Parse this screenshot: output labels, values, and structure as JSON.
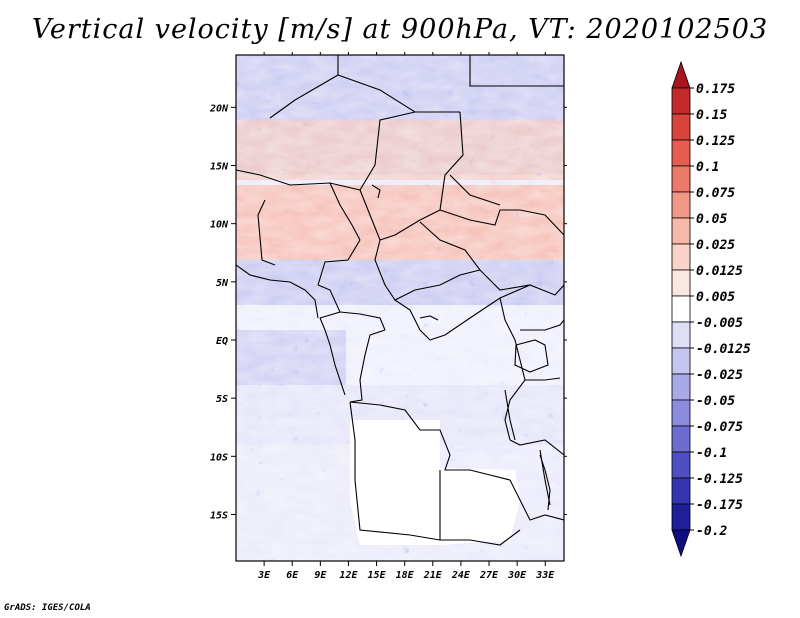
{
  "title": "Vertical velocity [m/s] at 900hPa, VT: 2020102503",
  "credit": "GrADS: IGES/COLA",
  "map": {
    "lon_range": [
      0,
      35
    ],
    "lat_range": [
      -19,
      24.5
    ],
    "lon_ticks": [
      {
        "value": 3,
        "label": "3E"
      },
      {
        "value": 6,
        "label": "6E"
      },
      {
        "value": 9,
        "label": "9E"
      },
      {
        "value": 12,
        "label": "12E"
      },
      {
        "value": 15,
        "label": "15E"
      },
      {
        "value": 18,
        "label": "18E"
      },
      {
        "value": 21,
        "label": "21E"
      },
      {
        "value": 24,
        "label": "24E"
      },
      {
        "value": 27,
        "label": "27E"
      },
      {
        "value": 30,
        "label": "30E"
      },
      {
        "value": 33,
        "label": "33E"
      }
    ],
    "lat_ticks": [
      {
        "value": 20,
        "label": "20N"
      },
      {
        "value": 15,
        "label": "15N"
      },
      {
        "value": 10,
        "label": "10N"
      },
      {
        "value": 5,
        "label": "5N"
      },
      {
        "value": 0,
        "label": "EQ"
      },
      {
        "value": -5,
        "label": "5S"
      },
      {
        "value": -10,
        "label": "10S"
      },
      {
        "value": -15,
        "label": "15S"
      }
    ]
  },
  "colorbar": {
    "labels": [
      "0.175",
      "0.15",
      "0.125",
      "0.1",
      "0.075",
      "0.05",
      "0.025",
      "0.0125",
      "0.005",
      "-0.005",
      "-0.0125",
      "-0.025",
      "-0.05",
      "-0.075",
      "-0.1",
      "-0.125",
      "-0.175",
      "-0.2"
    ],
    "colors": [
      "#a8161c",
      "#c42a2c",
      "#d8443c",
      "#e55d4f",
      "#ec7a68",
      "#f19987",
      "#f6b8a9",
      "#f9d3c8",
      "#fbe7e1",
      "#ffffff",
      "#dedef7",
      "#c5c5f1",
      "#a9a9e8",
      "#8c8cde",
      "#6d6dd1",
      "#4f4fc2",
      "#3535b0",
      "#1f1f9a",
      "#0e0e80"
    ]
  }
}
